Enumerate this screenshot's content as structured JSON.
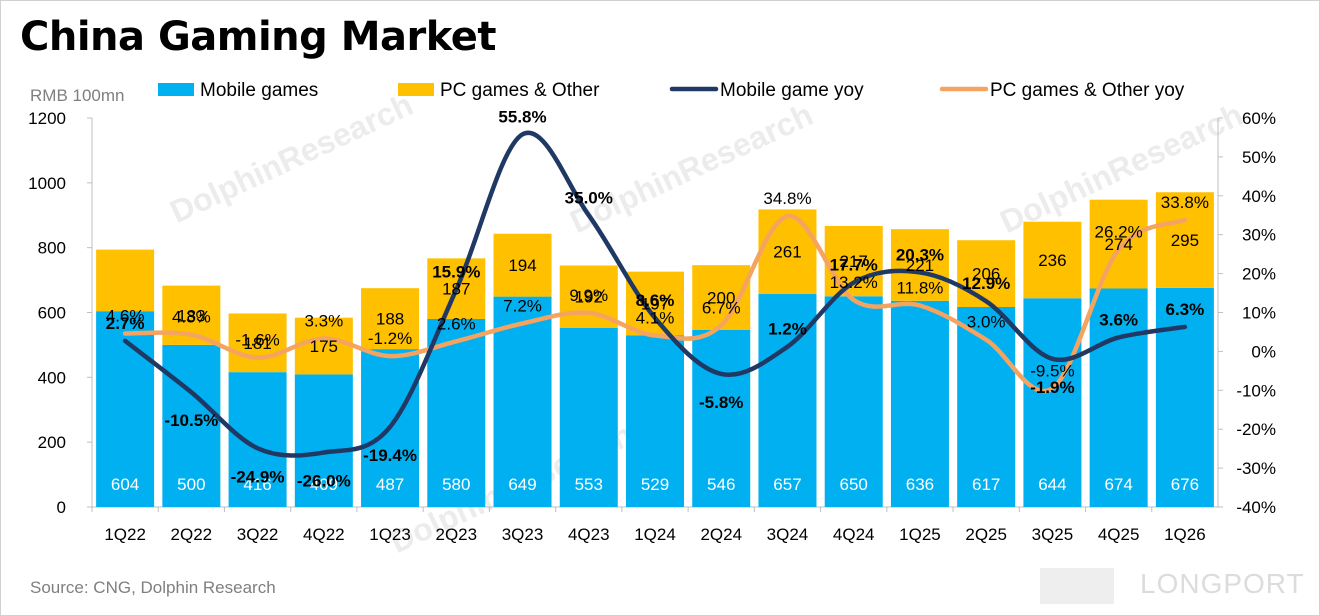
{
  "title": "China Gaming Market",
  "unit_label": "RMB 100mn",
  "source": "Source: CNG, Dolphin Research",
  "watermark": "DolphinResearch",
  "brand": "LONGPORT",
  "colors": {
    "mobile_bar": "#00b0f0",
    "pc_bar": "#ffc000",
    "mobile_yoy": "#1f3864",
    "pc_yoy": "#f4a460"
  },
  "chart_data": {
    "type": "bar",
    "stacked": true,
    "categories": [
      "1Q22",
      "2Q22",
      "3Q22",
      "4Q22",
      "1Q23",
      "2Q23",
      "3Q23",
      "4Q23",
      "1Q24",
      "2Q24",
      "3Q24",
      "4Q24",
      "1Q25",
      "2Q25",
      "3Q25",
      "4Q25",
      "1Q26"
    ],
    "ylim": [
      0,
      1200
    ],
    "yticks": [
      0,
      200,
      400,
      600,
      800,
      1000,
      1200
    ],
    "y2lim": [
      -40,
      60
    ],
    "y2ticks": [
      "-40%",
      "-30%",
      "-20%",
      "-10%",
      "0%",
      "10%",
      "20%",
      "30%",
      "40%",
      "50%",
      "60%"
    ],
    "legend_position": "top",
    "grid": false,
    "series": [
      {
        "name": "Mobile games",
        "kind": "bar",
        "values": [
          604,
          500,
          416,
          409,
          487,
          580,
          649,
          553,
          529,
          546,
          657,
          650,
          636,
          617,
          644,
          674,
          676
        ],
        "labels": [
          "604",
          "500",
          "416",
          "409",
          "487",
          "580",
          "649",
          "553",
          "529",
          "546",
          "657",
          "650",
          "636",
          "617",
          "644",
          "674",
          "676"
        ]
      },
      {
        "name": "PC games & Other",
        "kind": "bar",
        "values": [
          190,
          183,
          181,
          175,
          188,
          187,
          194,
          192,
          197,
          200,
          261,
          217,
          221,
          206,
          236,
          274,
          295
        ],
        "labels": [
          "",
          "183",
          "181",
          "175",
          "188",
          "187",
          "194",
          "192",
          "197",
          "200",
          "261",
          "217",
          "221",
          "206",
          "236",
          "274",
          "295"
        ]
      },
      {
        "name": "Mobile game yoy",
        "kind": "line",
        "axis": "y2",
        "values": [
          2.7,
          -10.5,
          -24.9,
          -26.0,
          -19.4,
          15.9,
          55.8,
          35.0,
          8.6,
          -5.8,
          1.2,
          17.7,
          20.3,
          12.9,
          -1.9,
          3.6,
          6.3
        ],
        "labels": [
          "2.7%",
          "-10.5%",
          "-24.9%",
          "-26.0%",
          "-19.4%",
          "15.9%",
          "55.8%",
          "35.0%",
          "8.6%",
          "-5.8%",
          "1.2%",
          "17.7%",
          "20.3%",
          "12.9%",
          "-1.9%",
          "3.6%",
          "6.3%"
        ]
      },
      {
        "name": "PC games & Other yoy",
        "kind": "line",
        "axis": "y2",
        "values": [
          4.6,
          4.3,
          -1.6,
          3.3,
          -1.2,
          2.6,
          7.2,
          9.9,
          4.1,
          6.7,
          34.8,
          13.2,
          11.8,
          3.0,
          -9.5,
          26.2,
          33.8
        ],
        "labels": [
          "4.6%",
          "4.3%",
          "-1.6%",
          "3.3%",
          "-1.2%",
          "2.6%",
          "7.2%",
          "9.9%",
          "4.1%",
          "6.7%",
          "34.8%",
          "13.2%",
          "11.8%",
          "3.0%",
          "-9.5%",
          "26.2%",
          "33.8%"
        ]
      }
    ]
  }
}
